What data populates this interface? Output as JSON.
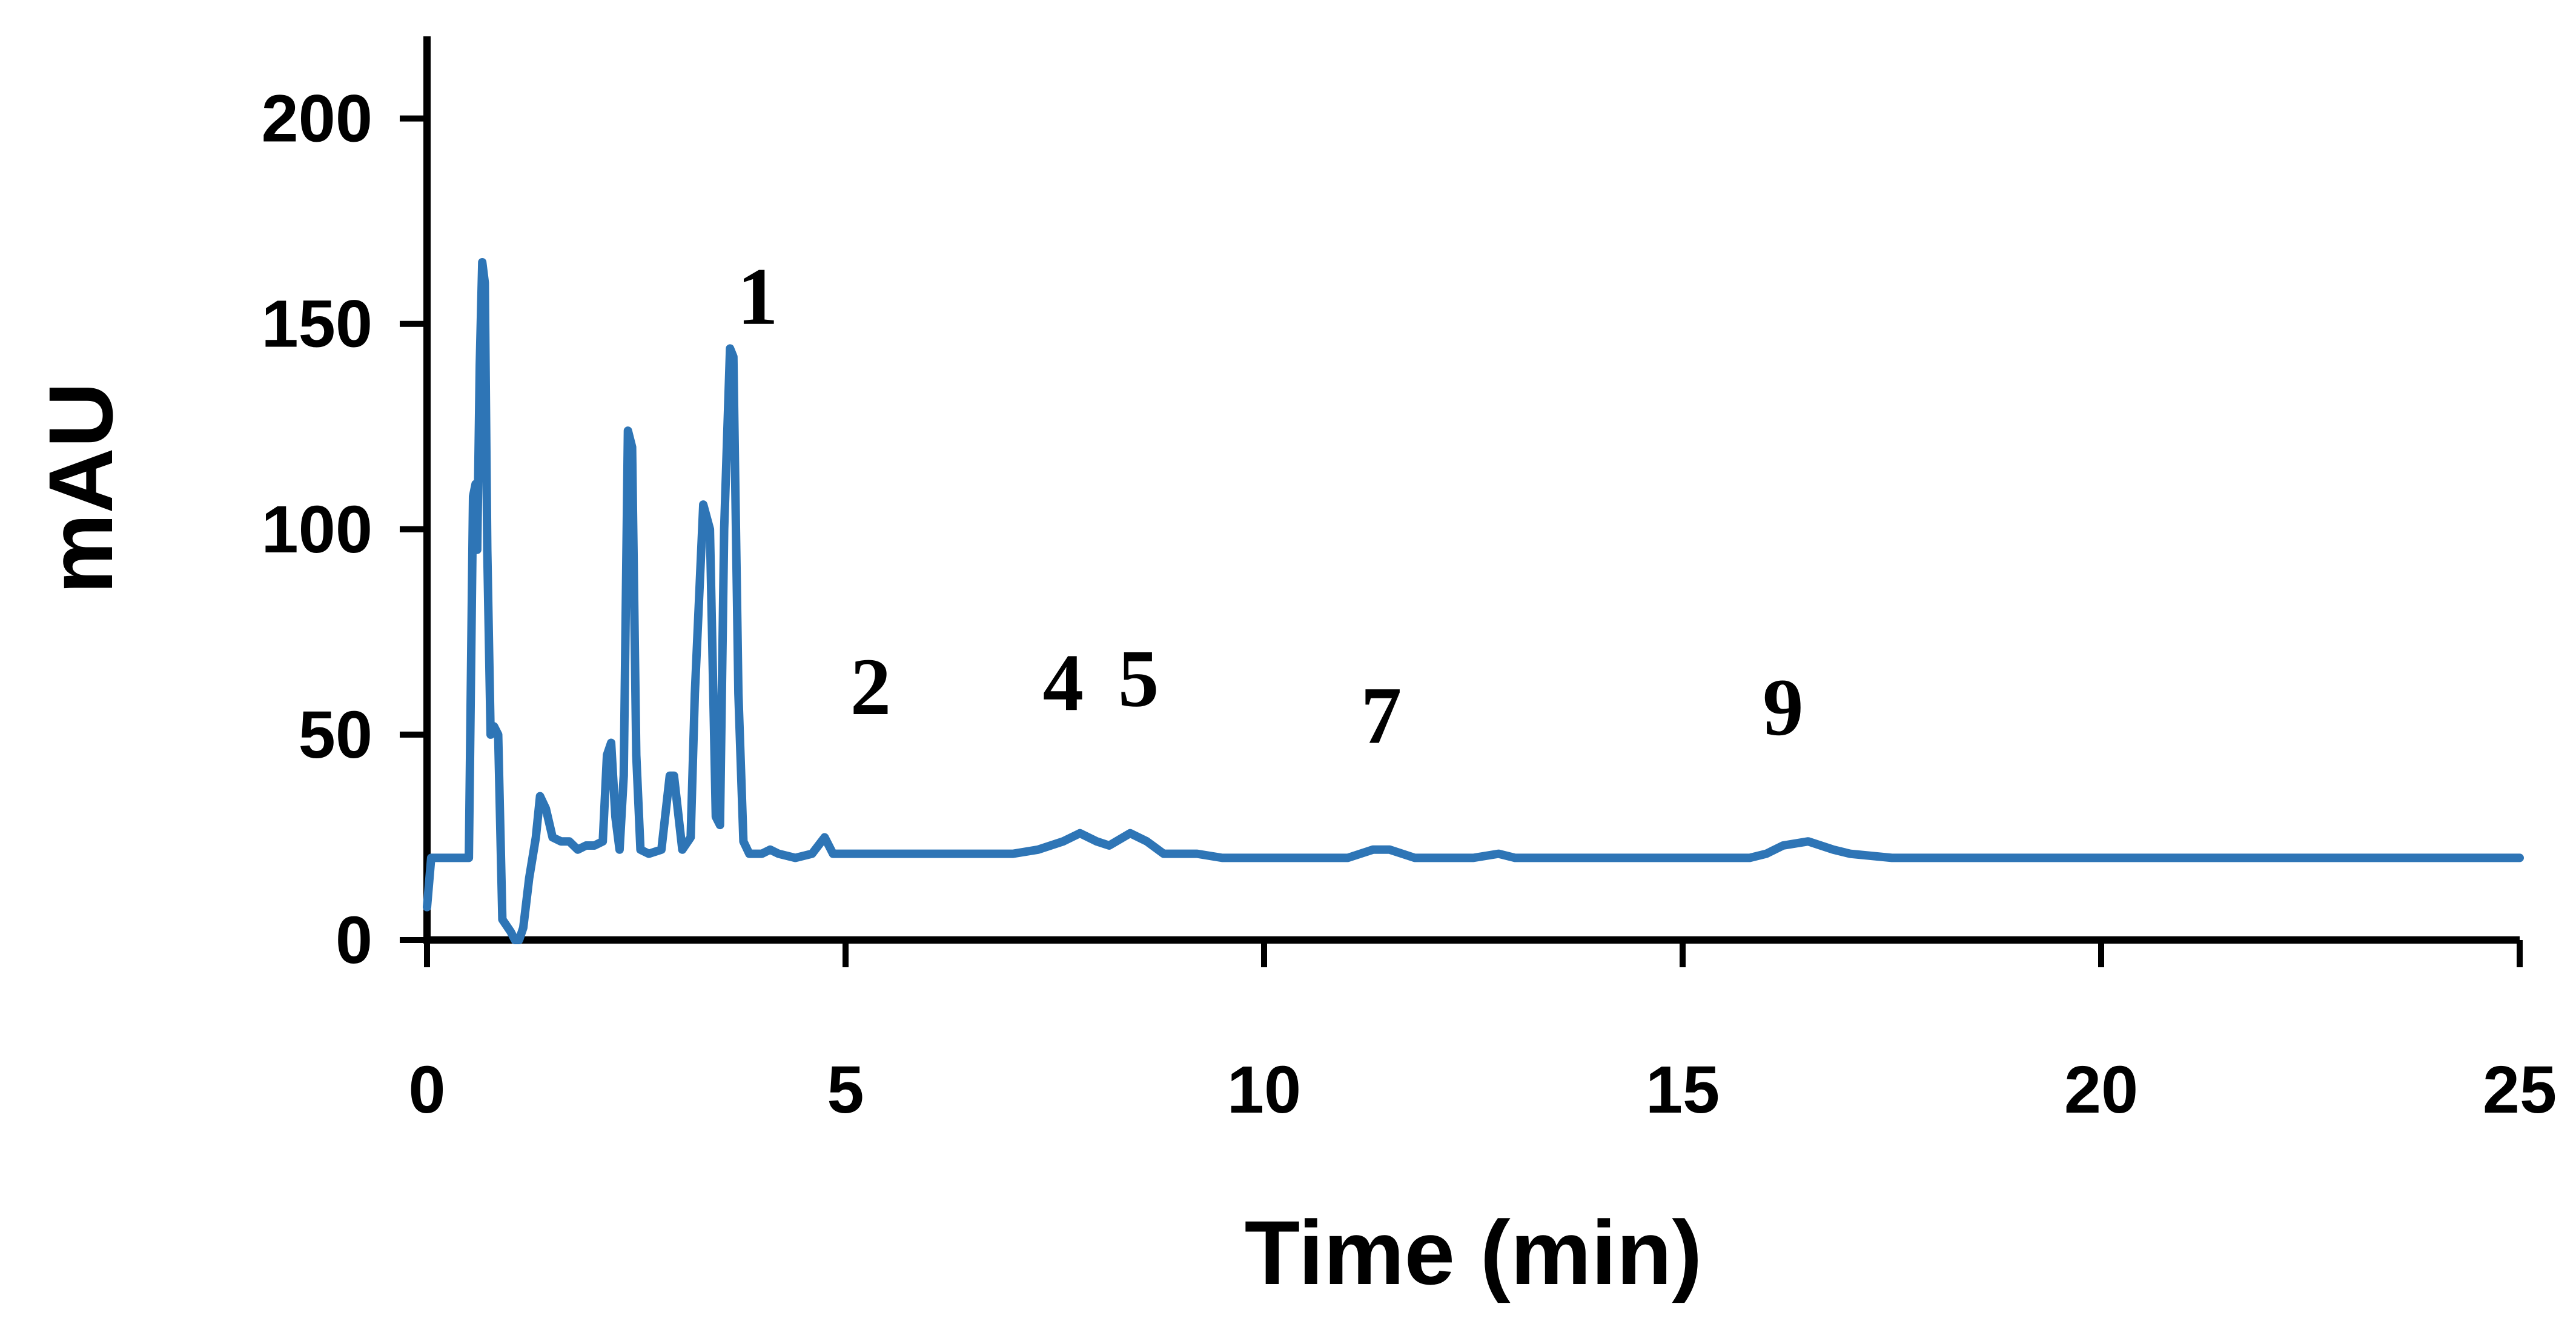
{
  "chart_data": {
    "type": "line",
    "title": "",
    "xlabel": "Time (min)",
    "ylabel": "mAU",
    "xlim": [
      0,
      25
    ],
    "ylim": [
      0,
      220
    ],
    "x_ticks": [
      0,
      5,
      10,
      15,
      20,
      25
    ],
    "x_tick_labels": [
      "0",
      "5",
      "10",
      "15",
      "20",
      "25"
    ],
    "y_ticks": [
      0,
      50,
      100,
      150,
      200
    ],
    "y_tick_labels": [
      "0",
      "50",
      "100",
      "150",
      "200"
    ],
    "grid": false,
    "legend": "none",
    "series": [
      {
        "color": "#2e75b6",
        "points": [
          [
            0.0,
            8
          ],
          [
            0.05,
            20
          ],
          [
            0.1,
            20
          ],
          [
            0.2,
            20
          ],
          [
            0.3,
            20
          ],
          [
            0.4,
            20
          ],
          [
            0.5,
            20
          ],
          [
            0.55,
            108
          ],
          [
            0.58,
            111
          ],
          [
            0.6,
            95
          ],
          [
            0.63,
            140
          ],
          [
            0.66,
            165
          ],
          [
            0.69,
            160
          ],
          [
            0.72,
            95
          ],
          [
            0.76,
            50
          ],
          [
            0.8,
            52
          ],
          [
            0.85,
            50
          ],
          [
            0.9,
            5
          ],
          [
            1.0,
            2
          ],
          [
            1.05,
            0
          ],
          [
            1.1,
            0
          ],
          [
            1.15,
            3
          ],
          [
            1.22,
            15
          ],
          [
            1.3,
            25
          ],
          [
            1.35,
            35
          ],
          [
            1.42,
            32
          ],
          [
            1.5,
            25
          ],
          [
            1.6,
            24
          ],
          [
            1.7,
            24
          ],
          [
            1.8,
            22
          ],
          [
            1.9,
            23
          ],
          [
            2.0,
            23
          ],
          [
            2.1,
            24
          ],
          [
            2.15,
            45
          ],
          [
            2.2,
            48
          ],
          [
            2.25,
            30
          ],
          [
            2.3,
            22
          ],
          [
            2.35,
            40
          ],
          [
            2.4,
            124
          ],
          [
            2.45,
            120
          ],
          [
            2.5,
            45
          ],
          [
            2.55,
            22
          ],
          [
            2.65,
            21
          ],
          [
            2.8,
            22
          ],
          [
            2.9,
            40
          ],
          [
            2.95,
            40
          ],
          [
            3.05,
            22
          ],
          [
            3.15,
            25
          ],
          [
            3.2,
            60
          ],
          [
            3.3,
            106
          ],
          [
            3.38,
            100
          ],
          [
            3.45,
            30
          ],
          [
            3.5,
            28
          ],
          [
            3.55,
            100
          ],
          [
            3.62,
            144
          ],
          [
            3.66,
            142
          ],
          [
            3.72,
            60
          ],
          [
            3.78,
            24
          ],
          [
            3.85,
            21
          ],
          [
            4.0,
            21
          ],
          [
            4.1,
            22
          ],
          [
            4.2,
            21
          ],
          [
            4.4,
            20
          ],
          [
            4.6,
            21
          ],
          [
            4.75,
            25
          ],
          [
            4.85,
            21
          ],
          [
            5.0,
            21
          ],
          [
            5.5,
            21
          ],
          [
            6.0,
            21
          ],
          [
            6.5,
            21
          ],
          [
            7.0,
            21
          ],
          [
            7.3,
            22
          ],
          [
            7.6,
            24
          ],
          [
            7.8,
            26
          ],
          [
            8.0,
            24
          ],
          [
            8.15,
            23
          ],
          [
            8.4,
            26
          ],
          [
            8.6,
            24
          ],
          [
            8.8,
            21
          ],
          [
            9.0,
            21
          ],
          [
            9.2,
            21
          ],
          [
            9.5,
            20
          ],
          [
            10.0,
            20
          ],
          [
            10.5,
            20
          ],
          [
            11.0,
            20
          ],
          [
            11.3,
            22
          ],
          [
            11.5,
            22
          ],
          [
            11.8,
            20
          ],
          [
            12.0,
            20
          ],
          [
            12.5,
            20
          ],
          [
            12.8,
            21
          ],
          [
            13.0,
            20
          ],
          [
            14.0,
            20
          ],
          [
            15.0,
            20
          ],
          [
            15.8,
            20
          ],
          [
            16.0,
            21
          ],
          [
            16.2,
            23
          ],
          [
            16.5,
            24
          ],
          [
            16.8,
            22
          ],
          [
            17.0,
            21
          ],
          [
            17.5,
            20
          ],
          [
            18.0,
            20
          ],
          [
            20.0,
            20
          ],
          [
            22.0,
            20
          ],
          [
            25.0,
            20
          ]
        ]
      }
    ],
    "annotations": [
      {
        "text": "1",
        "x": 3.95,
        "y": 150
      },
      {
        "text": "2",
        "x": 5.3,
        "y": 55
      },
      {
        "text": "4",
        "x": 7.6,
        "y": 56
      },
      {
        "text": "5",
        "x": 8.5,
        "y": 57
      },
      {
        "text": "7",
        "x": 11.4,
        "y": 48
      },
      {
        "text": "9",
        "x": 16.2,
        "y": 50
      }
    ]
  }
}
